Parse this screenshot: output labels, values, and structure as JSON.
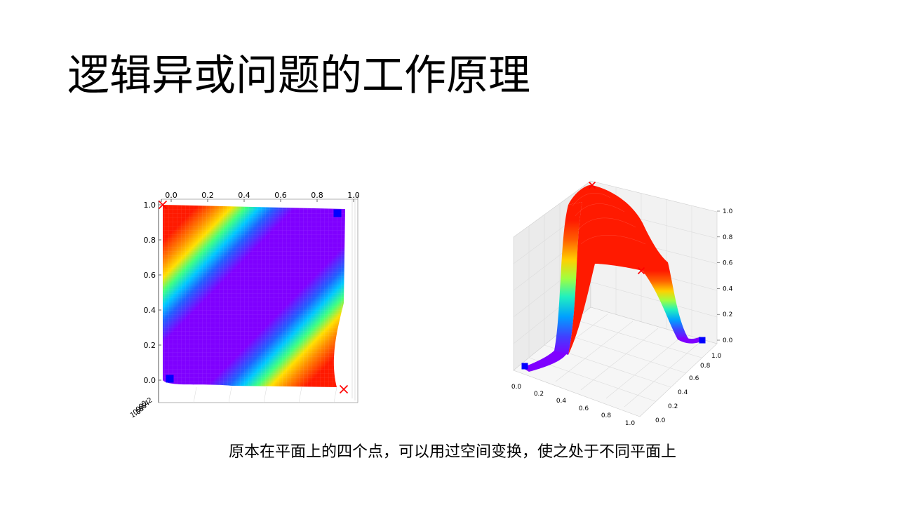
{
  "slide": {
    "title": "逻辑异或问题的工作原理",
    "caption": "原本在平面上的四个点，可以用过空间变换，使之处于不同平面上"
  },
  "colors": {
    "surface_high": "#ff1a00",
    "surface_low": "#7f00ff",
    "marker_x": "#ff0000",
    "marker_square": "#0000ff"
  },
  "chart_data": [
    {
      "type": "surface",
      "view": "top-down",
      "x_ticks": [
        "0.0",
        "0.2",
        "0.4",
        "0.6",
        "0.8",
        "1.0"
      ],
      "y_ticks": [
        "0.0",
        "0.2",
        "0.4",
        "0.6",
        "0.8",
        "1.0"
      ],
      "colormap": "rainbow",
      "points": [
        {
          "x": 0,
          "y": 0,
          "z": 0,
          "marker": "square"
        },
        {
          "x": 1,
          "y": 1,
          "z": 0,
          "marker": "square"
        },
        {
          "x": 0,
          "y": 1,
          "z": 1,
          "marker": "x"
        },
        {
          "x": 1,
          "y": 0,
          "z": 1,
          "marker": "x"
        }
      ]
    },
    {
      "type": "surface",
      "view": "3d",
      "x_ticks": [
        "0.0",
        "0.2",
        "0.4",
        "0.6",
        "0.8",
        "1.0"
      ],
      "y_ticks": [
        "0.0",
        "0.2",
        "0.4",
        "0.6",
        "0.8",
        "1.0"
      ],
      "z_ticks": [
        "0.0",
        "0.2",
        "0.4",
        "0.6",
        "0.8",
        "1.0"
      ],
      "colormap": "rainbow",
      "points": [
        {
          "x": 0,
          "y": 0,
          "z": 0,
          "marker": "square"
        },
        {
          "x": 1,
          "y": 1,
          "z": 0,
          "marker": "square"
        },
        {
          "x": 0,
          "y": 1,
          "z": 1,
          "marker": "x"
        },
        {
          "x": 1,
          "y": 0,
          "z": 1,
          "marker": "x"
        }
      ]
    }
  ]
}
